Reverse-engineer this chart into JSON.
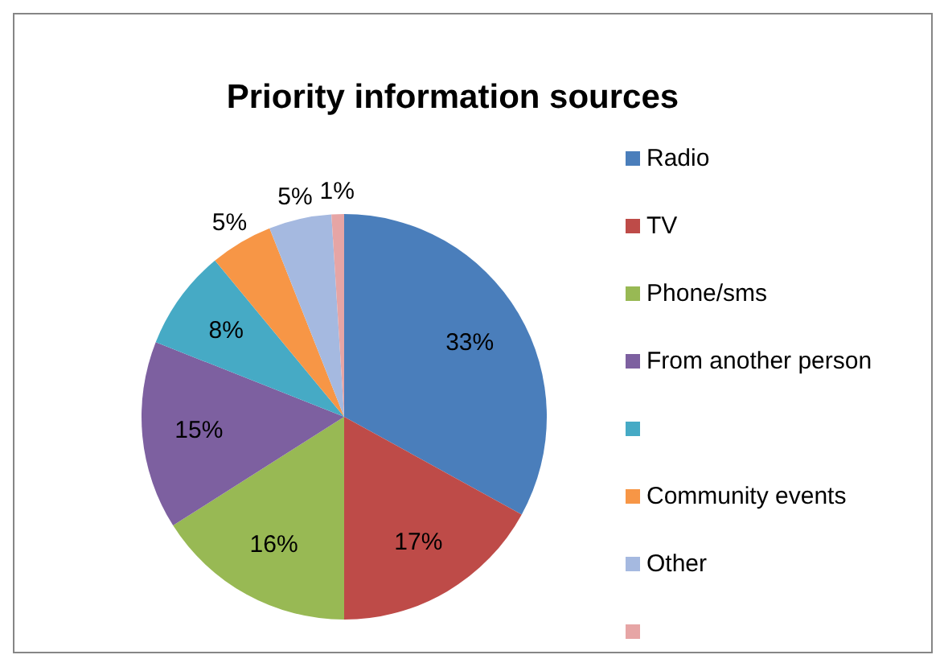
{
  "chart_data": {
    "type": "pie",
    "title": "Priority information sources",
    "categories": [
      "Radio",
      "TV",
      "Phone/sms",
      "From another person",
      null,
      "Community events",
      "Other",
      null
    ],
    "values": [
      33,
      17,
      16,
      15,
      8,
      5,
      5,
      1
    ],
    "value_labels": [
      "33%",
      "17%",
      "16%",
      "15%",
      "8%",
      "5%",
      "5%",
      "1%"
    ],
    "colors": [
      "#4a7ebb",
      "#be4b48",
      "#98b954",
      "#7d60a0",
      "#46aac5",
      "#f79646",
      "#a5b9e0",
      "#e6a5a5"
    ],
    "legend": "right"
  }
}
